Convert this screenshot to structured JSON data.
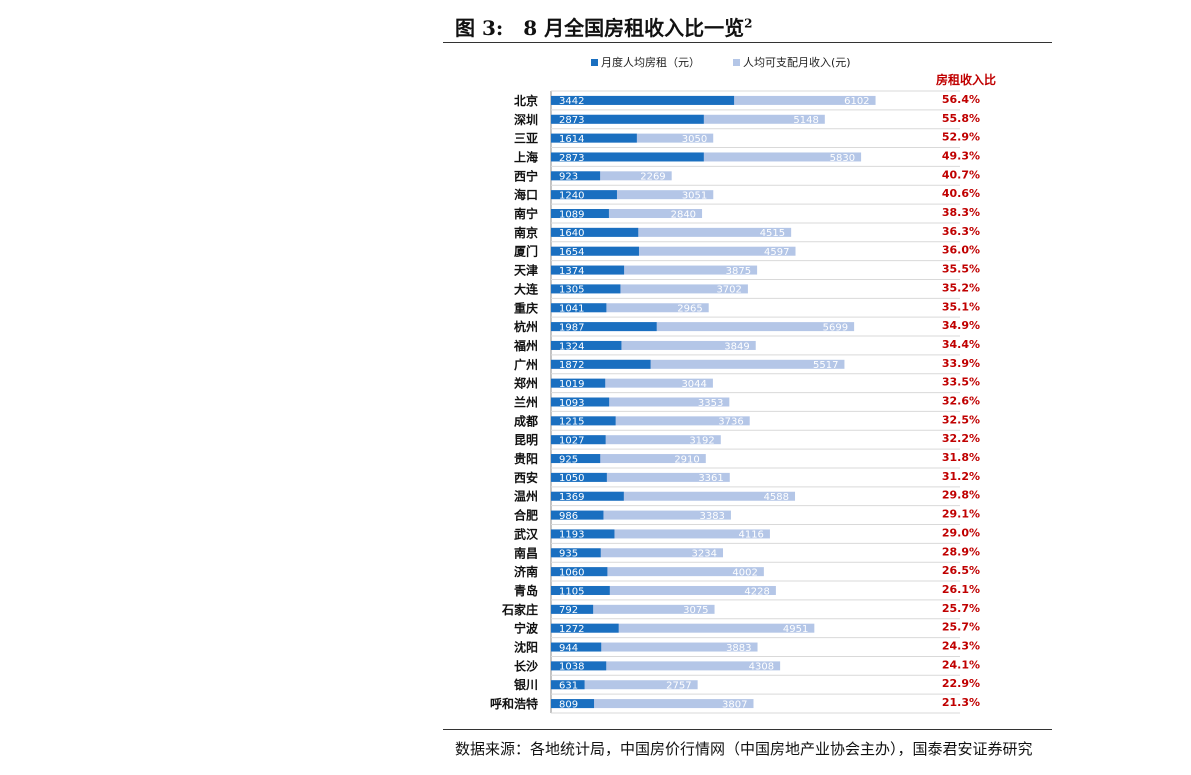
{
  "figure": {
    "title": "图 3:　8 月全国房租收入比一览",
    "title_sup": "2",
    "source": "数据来源：各地统计局，中国房价行情网（中国房地产业协会主办），国泰君安证券研究"
  },
  "colors": {
    "rent": "#1a6fc0",
    "income": "#b4c6e7",
    "ratio": "#c00000",
    "city": "#111111"
  },
  "chart_data": {
    "type": "bar",
    "orientation": "horizontal",
    "overlap": true,
    "ratio_header": "房租收入比",
    "legend_position": "top",
    "categories": [
      "北京",
      "深圳",
      "三亚",
      "上海",
      "西宁",
      "海口",
      "南宁",
      "南京",
      "厦门",
      "天津",
      "大连",
      "重庆",
      "杭州",
      "福州",
      "广州",
      "郑州",
      "兰州",
      "成都",
      "昆明",
      "贵阳",
      "西安",
      "温州",
      "合肥",
      "武汉",
      "南昌",
      "济南",
      "青岛",
      "石家庄",
      "宁波",
      "沈阳",
      "长沙",
      "银川",
      "呼和浩特"
    ],
    "series": [
      {
        "name": "月度人均房租（元）",
        "values": [
          3442,
          2873,
          1614,
          2873,
          923,
          1240,
          1089,
          1640,
          1654,
          1374,
          1305,
          1041,
          1987,
          1324,
          1872,
          1019,
          1093,
          1215,
          1027,
          925,
          1050,
          1369,
          986,
          1193,
          935,
          1060,
          1105,
          792,
          1272,
          944,
          1038,
          631,
          809
        ]
      },
      {
        "name": "人均可支配月收入(元)",
        "values": [
          6102,
          5148,
          3050,
          5830,
          2269,
          3051,
          2840,
          4515,
          4597,
          3875,
          3702,
          2965,
          5699,
          3849,
          5517,
          3044,
          3353,
          3736,
          3192,
          2910,
          3361,
          4588,
          3383,
          4116,
          3234,
          4002,
          4228,
          3075,
          4951,
          3883,
          4308,
          2757,
          3807
        ]
      }
    ],
    "ratios": [
      "56.4%",
      "55.8%",
      "52.9%",
      "49.3%",
      "40.7%",
      "40.6%",
      "38.3%",
      "36.3%",
      "36.0%",
      "35.5%",
      "35.2%",
      "35.1%",
      "34.9%",
      "34.4%",
      "33.9%",
      "33.5%",
      "32.6%",
      "32.5%",
      "32.2%",
      "31.8%",
      "31.2%",
      "29.8%",
      "29.1%",
      "29.0%",
      "28.9%",
      "26.5%",
      "26.1%",
      "25.7%",
      "25.7%",
      "24.3%",
      "24.1%",
      "22.9%",
      "21.3%"
    ],
    "xlim": [
      0,
      6900
    ],
    "grid": true
  }
}
